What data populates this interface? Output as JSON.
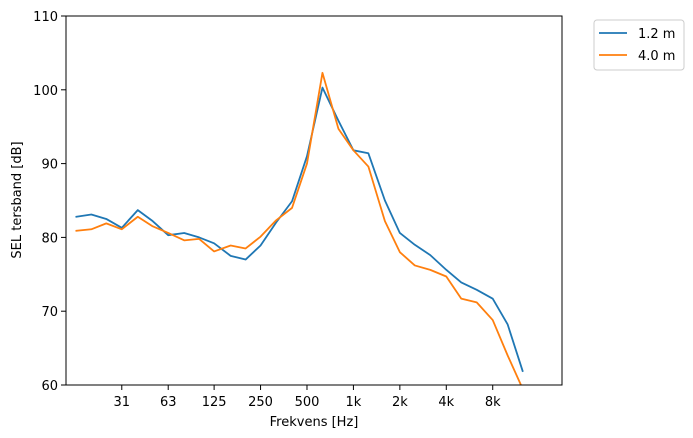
{
  "chart_data": {
    "type": "line",
    "xlabel": "Frekvens [Hz]",
    "ylabel": "SEL tersband [dB]",
    "ylim": [
      60,
      110
    ],
    "yticks": [
      60,
      70,
      80,
      90,
      100,
      110
    ],
    "x_scale": "log",
    "x_ticks": [
      {
        "label": "31",
        "value": 31.5
      },
      {
        "label": "63",
        "value": 63
      },
      {
        "label": "125",
        "value": 125
      },
      {
        "label": "250",
        "value": 250
      },
      {
        "label": "500",
        "value": 500
      },
      {
        "label": "1k",
        "value": 1000
      },
      {
        "label": "2k",
        "value": 2000
      },
      {
        "label": "4k",
        "value": 4000
      },
      {
        "label": "8k",
        "value": 8000
      }
    ],
    "x": [
      16,
      20,
      25,
      31.5,
      40,
      50,
      63,
      80,
      100,
      125,
      160,
      200,
      250,
      315,
      400,
      500,
      630,
      800,
      1000,
      1250,
      1600,
      2000,
      2500,
      3150,
      4000,
      5000,
      6300,
      8000,
      10000,
      12500,
      16000
    ],
    "grid": false,
    "legend_position": "outside-top-right",
    "series": [
      {
        "name": "1.2 m",
        "color": "#1f77b4",
        "values": [
          82.8,
          83.1,
          82.5,
          81.3,
          83.7,
          82.2,
          80.3,
          80.6,
          80.0,
          79.2,
          77.5,
          77.0,
          78.9,
          82.0,
          84.9,
          91.0,
          100.3,
          95.8,
          91.8,
          91.4,
          85.0,
          80.6,
          79.0,
          77.6,
          75.6,
          73.9,
          72.9,
          71.7,
          68.2,
          61.9,
          null
        ]
      },
      {
        "name": "4.0 m",
        "color": "#ff7f0e",
        "values": [
          80.9,
          81.1,
          81.9,
          81.1,
          82.8,
          81.5,
          80.6,
          79.6,
          79.8,
          78.1,
          78.9,
          78.5,
          80.1,
          82.3,
          84.0,
          90.0,
          102.3,
          94.7,
          91.8,
          89.6,
          82.2,
          78.0,
          76.2,
          75.6,
          74.7,
          71.7,
          71.2,
          68.8,
          64.0,
          59.5,
          null
        ]
      }
    ]
  }
}
